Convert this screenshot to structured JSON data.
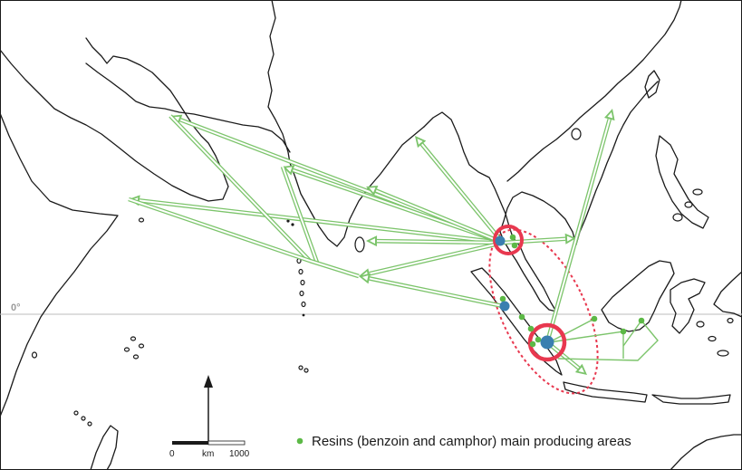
{
  "map": {
    "equator_label": "0°",
    "legend": {
      "label": "Resins (benzoin and camphor) main producing areas",
      "marker_color": "#5cb946"
    },
    "scale_bar": {
      "start_label": "0",
      "unit_label": "km",
      "end_label": "1000"
    },
    "north_arrow": "north-arrow-icon",
    "colors": {
      "route": "#7cc46b",
      "producing_dot": "#5cb946",
      "port": "#3a7fb0",
      "hub_ring": "#e8384f",
      "region_outline": "#e8384f",
      "coast": "#1a1a1a"
    }
  }
}
